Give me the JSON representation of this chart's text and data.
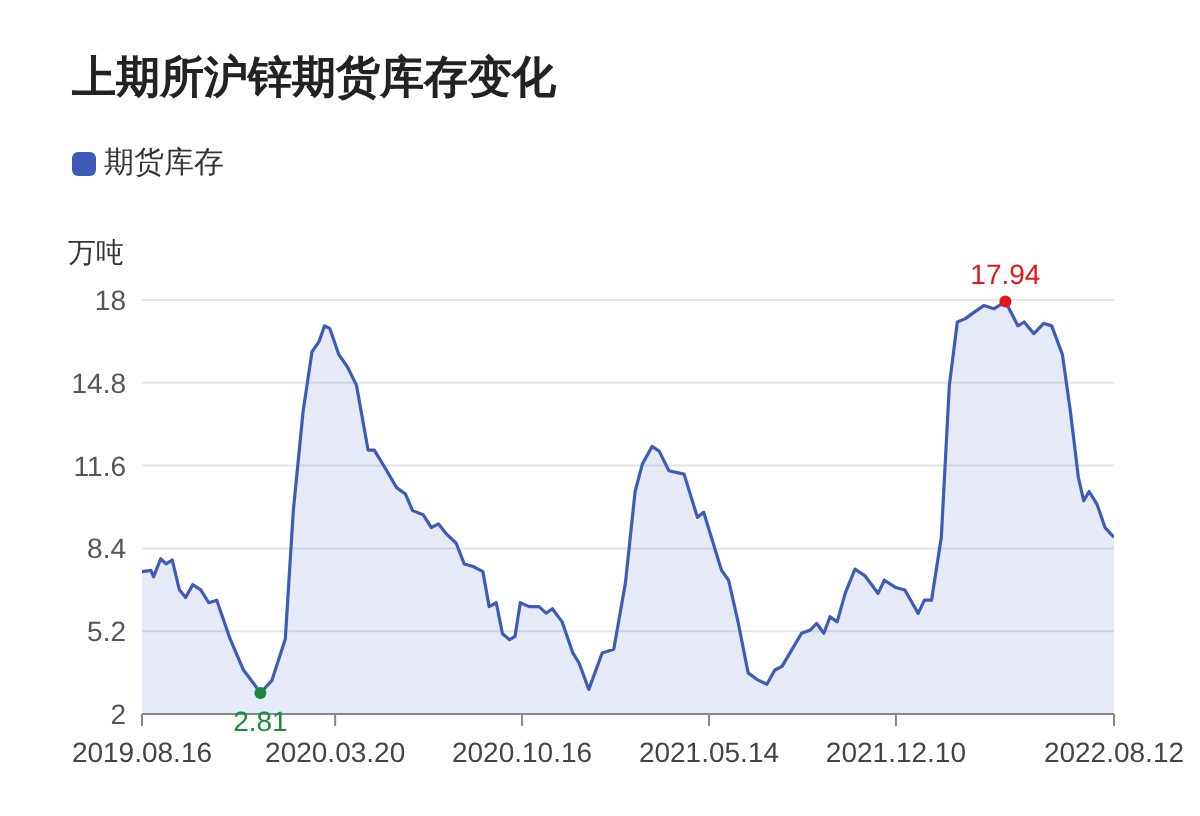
{
  "chart_data": {
    "type": "area",
    "title": "上期所沪锌期货库存变化",
    "ylabel": "万吨",
    "legend": "top left",
    "grid": "y",
    "x": [
      "2019-08-16",
      "2019-08-26",
      "2019-08-29",
      "2019-09-06",
      "2019-09-12",
      "2019-09-19",
      "2019-09-27",
      "2019-10-04",
      "2019-10-12",
      "2019-10-21",
      "2019-10-30",
      "2019-11-08",
      "2019-11-23",
      "2019-12-08",
      "2019-12-19",
      "2019-12-27",
      "2020-01-09",
      "2020-01-24",
      "2020-02-02",
      "2020-02-13",
      "2020-02-23",
      "2020-03-02",
      "2020-03-08",
      "2020-03-14",
      "2020-03-24",
      "2020-04-03",
      "2020-04-13",
      "2020-04-26",
      "2020-05-03",
      "2020-05-17",
      "2020-05-28",
      "2020-06-07",
      "2020-06-15",
      "2020-06-27",
      "2020-07-06",
      "2020-07-14",
      "2020-07-23",
      "2020-08-03",
      "2020-08-12",
      "2020-08-22",
      "2020-09-02",
      "2020-09-09",
      "2020-09-17",
      "2020-09-24",
      "2020-10-02",
      "2020-10-08",
      "2020-10-14",
      "2020-10-24",
      "2020-11-04",
      "2020-11-12",
      "2020-11-19",
      "2020-11-30",
      "2020-12-12",
      "2020-12-19",
      "2020-12-30",
      "2021-01-14",
      "2021-01-27",
      "2021-02-09",
      "2021-02-20",
      "2021-02-28",
      "2021-03-11",
      "2021-03-19",
      "2021-03-30",
      "2021-04-16",
      "2021-05-01",
      "2021-05-08",
      "2021-05-28",
      "2021-06-05",
      "2021-06-16",
      "2021-06-27",
      "2021-07-07",
      "2021-07-18",
      "2021-07-27",
      "2021-08-04",
      "2021-08-15",
      "2021-08-26",
      "2021-09-05",
      "2021-09-12",
      "2021-09-20",
      "2021-09-27",
      "2021-10-05",
      "2021-10-14",
      "2021-10-25",
      "2021-11-05",
      "2021-11-20",
      "2021-11-27",
      "2021-12-09",
      "2021-12-20",
      "2022-01-04",
      "2022-01-11",
      "2022-01-19",
      "2022-01-30",
      "2022-02-08",
      "2022-02-17",
      "2022-02-26",
      "2022-03-08",
      "2022-03-19",
      "2022-03-30",
      "2022-04-12",
      "2022-04-26",
      "2022-05-03",
      "2022-05-14",
      "2022-05-25",
      "2022-06-03",
      "2022-06-15",
      "2022-06-24",
      "2022-07-03",
      "2022-07-09",
      "2022-07-15",
      "2022-07-24",
      "2022-08-02",
      "2022-08-12"
    ],
    "series": [
      {
        "name": "期货库存",
        "color": "#3f5bb8",
        "values": [
          7.5,
          7.55,
          7.3,
          8.0,
          7.8,
          7.95,
          6.8,
          6.5,
          7.0,
          6.8,
          6.3,
          6.4,
          4.9,
          3.7,
          3.2,
          2.81,
          3.3,
          4.9,
          9.86,
          13.7,
          16.0,
          16.4,
          17.0,
          16.9,
          15.9,
          15.4,
          14.7,
          12.2,
          12.2,
          11.4,
          10.75,
          10.5,
          9.86,
          9.7,
          9.2,
          9.35,
          8.96,
          8.6,
          7.8,
          7.7,
          7.5,
          6.15,
          6.3,
          5.1,
          4.87,
          5.0,
          6.3,
          6.15,
          6.15,
          5.9,
          6.07,
          5.56,
          4.36,
          3.97,
          2.95,
          4.36,
          4.5,
          7.04,
          10.6,
          11.65,
          12.34,
          12.16,
          11.4,
          11.27,
          9.6,
          9.8,
          7.56,
          7.17,
          5.5,
          3.59,
          3.33,
          3.15,
          3.7,
          3.84,
          4.48,
          5.12,
          5.25,
          5.5,
          5.12,
          5.76,
          5.56,
          6.66,
          7.6,
          7.35,
          6.66,
          7.17,
          6.9,
          6.79,
          5.89,
          6.4,
          6.4,
          8.83,
          14.7,
          17.15,
          17.28,
          17.53,
          17.79,
          17.66,
          17.94,
          17.0,
          17.15,
          16.7,
          17.1,
          17.0,
          15.9,
          13.7,
          11.14,
          10.24,
          10.6,
          10.1,
          9.2,
          8.83
        ]
      }
    ],
    "xlim": [
      "2019-08-16",
      "2022-08-12"
    ],
    "xticks": [
      {
        "value": "2019-08-16",
        "label": "2019.08.16"
      },
      {
        "value": "2020-03-20",
        "label": "2020.03.20"
      },
      {
        "value": "2020-10-16",
        "label": "2020.10.16"
      },
      {
        "value": "2021-05-14",
        "label": "2021.05.14"
      },
      {
        "value": "2021-12-10",
        "label": "2021.12.10"
      },
      {
        "value": "2022-08-12",
        "label": "2022.08.12"
      }
    ],
    "ylim": [
      2,
      18
    ],
    "yticks": [
      2,
      5.2,
      8.4,
      11.6,
      14.8,
      18
    ],
    "annotations": [
      {
        "text": "2.81",
        "x": "2019-12-27",
        "y": 2.81
      },
      {
        "text": "17.94",
        "x": "2022-04-12",
        "y": 17.94
      }
    ]
  }
}
